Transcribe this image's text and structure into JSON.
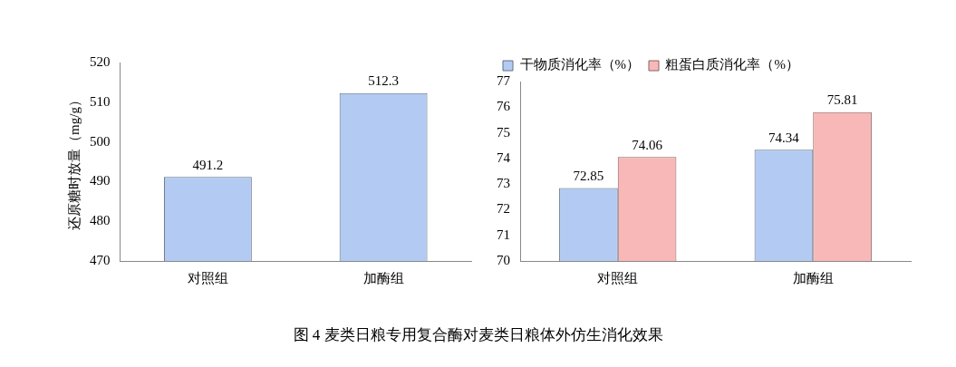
{
  "chart_data": [
    {
      "type": "bar",
      "ylabel": "还原糖时放量（mg/g）",
      "categories": [
        "对照组",
        "加酶组"
      ],
      "series": [
        {
          "color": "#b3cbf2",
          "values": [
            491.2,
            512.3
          ]
        }
      ],
      "ylim": [
        470,
        520
      ],
      "yticks": [
        470,
        480,
        490,
        500,
        510,
        520
      ],
      "grid": false,
      "legend": false,
      "data_labels": true,
      "annotations": [
        "图 4  麦类日粮专用复合酶对麦类日粮体外仿生消化效果"
      ]
    },
    {
      "type": "bar",
      "categories": [
        "对照组",
        "加酶组"
      ],
      "series": [
        {
          "name": "干物质消化率（%）",
          "color": "#b3cbf2",
          "values": [
            72.85,
            74.34
          ]
        },
        {
          "name": "粗蛋白质消化率（%）",
          "color": "#f8b8b8",
          "values": [
            74.06,
            75.81
          ]
        }
      ],
      "ylim": [
        70,
        77
      ],
      "yticks": [
        70,
        71,
        72,
        73,
        74,
        75,
        76,
        77
      ],
      "grid": false,
      "legend": "top",
      "data_labels": true
    }
  ]
}
